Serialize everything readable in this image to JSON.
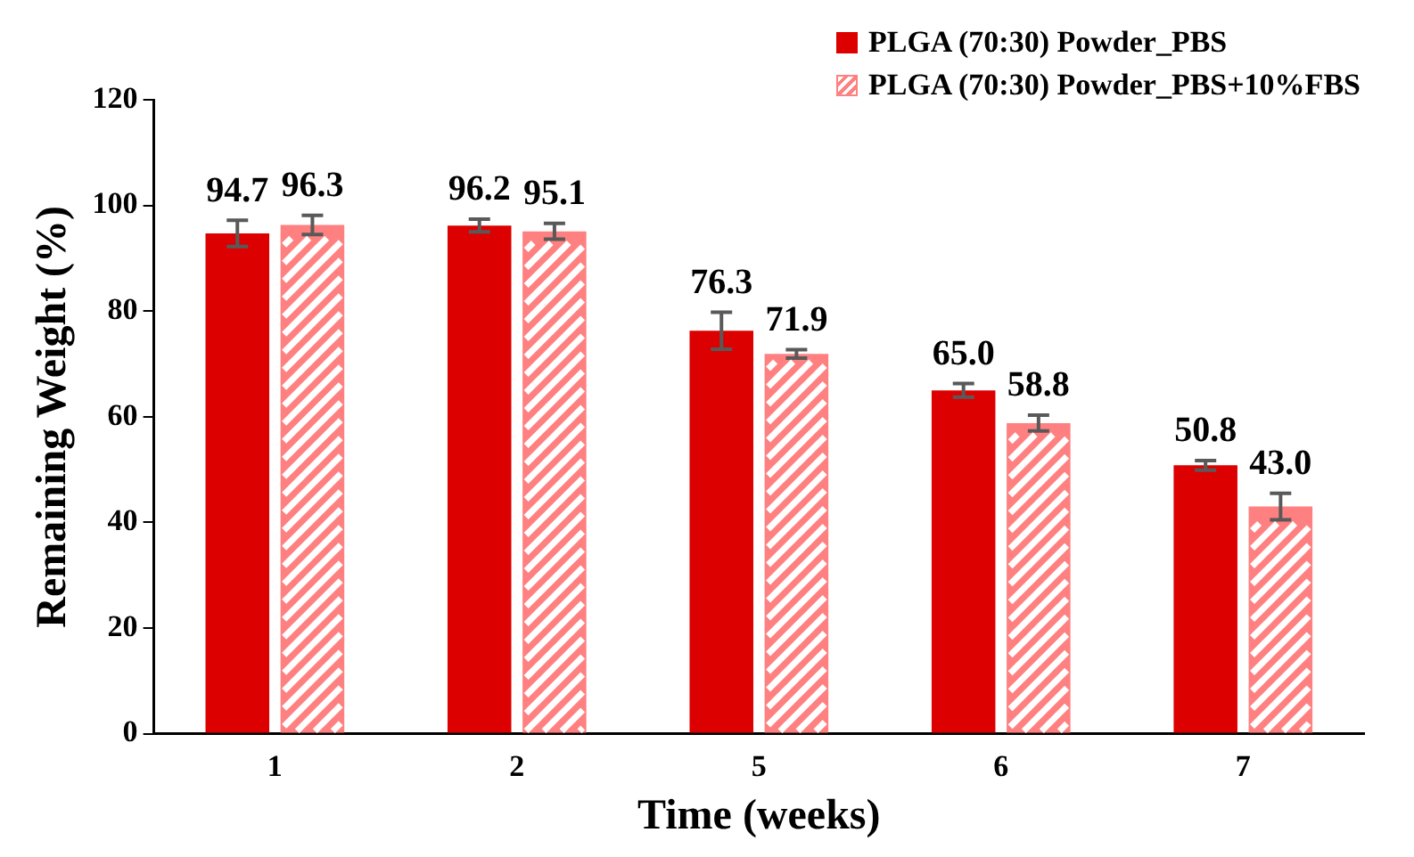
{
  "chart_data": {
    "type": "bar",
    "xlabel": "Time (weeks)",
    "ylabel": "Remaining Weight (%)",
    "categories": [
      "1",
      "2",
      "5",
      "6",
      "7"
    ],
    "series": [
      {
        "name": "PLGA (70:30) Powder_PBS",
        "color": "#dd0000",
        "values": [
          94.7,
          96.2,
          76.3,
          65.0,
          50.8
        ],
        "value_labels": [
          "94.7",
          "96.2",
          "76.3",
          "65.0",
          "50.8"
        ],
        "errors": [
          2.5,
          1.2,
          3.5,
          1.3,
          0.9
        ]
      },
      {
        "name": "PLGA (70:30) Powder_PBS+10%FBS",
        "color": "#ff8080",
        "values": [
          96.3,
          95.1,
          71.9,
          58.8,
          43.0
        ],
        "value_labels": [
          "96.3",
          "95.1",
          "71.9",
          "58.8",
          "43.0"
        ],
        "errors": [
          1.8,
          1.5,
          0.8,
          1.5,
          2.5
        ]
      }
    ],
    "ylim": [
      0,
      120
    ],
    "yticks": [
      0,
      20,
      40,
      60,
      80,
      100,
      120
    ],
    "grid": false,
    "legend": "top right"
  }
}
